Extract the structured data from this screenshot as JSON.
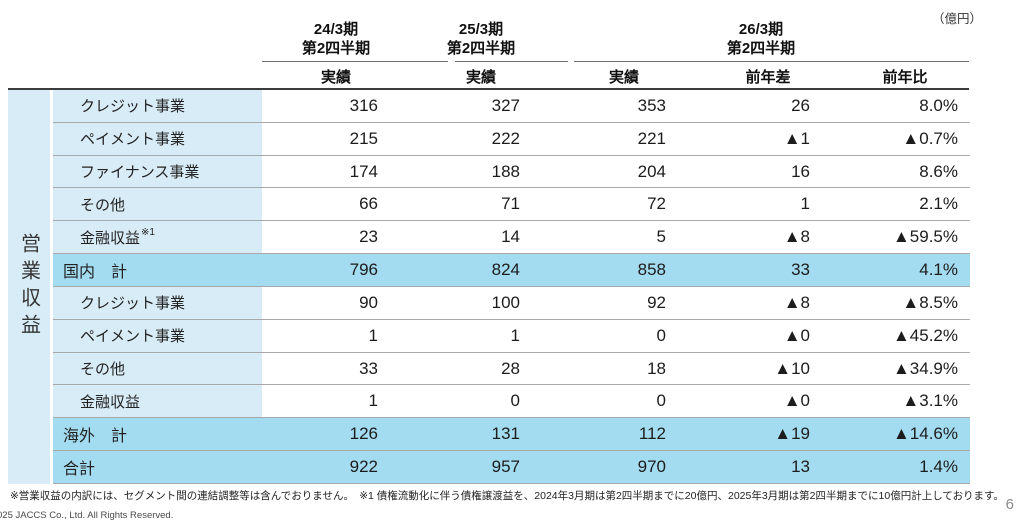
{
  "unit_label": "（億円）",
  "table": {
    "row_axis_label": "営業収益",
    "period_headers": [
      {
        "line1": "24/3期",
        "line2": "第2四半期"
      },
      {
        "line1": "25/3期",
        "line2": "第2四半期"
      },
      {
        "line1": "26/3期",
        "line2": "第2四半期"
      }
    ],
    "sub_headers": [
      "実績",
      "実績",
      "実績",
      "前年差",
      "前年比"
    ],
    "rows": [
      {
        "label": "クレジット事業",
        "sup": "",
        "type": "item",
        "values": [
          "316",
          "327",
          "353",
          "26",
          "8.0%"
        ]
      },
      {
        "label": "ペイメント事業",
        "sup": "",
        "type": "item",
        "values": [
          "215",
          "222",
          "221",
          "▲1",
          "▲0.7%"
        ]
      },
      {
        "label": "ファイナンス事業",
        "sup": "",
        "type": "item",
        "values": [
          "174",
          "188",
          "204",
          "16",
          "8.6%"
        ]
      },
      {
        "label": "その他",
        "sup": "",
        "type": "item",
        "values": [
          "66",
          "71",
          "72",
          "1",
          "2.1%"
        ]
      },
      {
        "label": "金融収益",
        "sup": "※1",
        "type": "item",
        "values": [
          "23",
          "14",
          "5",
          "▲8",
          "▲59.5%"
        ]
      },
      {
        "label": "国内　計",
        "sup": "",
        "type": "total",
        "values": [
          "796",
          "824",
          "858",
          "33",
          "4.1%"
        ]
      },
      {
        "label": "クレジット事業",
        "sup": "",
        "type": "item",
        "values": [
          "90",
          "100",
          "92",
          "▲8",
          "▲8.5%"
        ]
      },
      {
        "label": "ペイメント事業",
        "sup": "",
        "type": "item",
        "values": [
          "1",
          "1",
          "0",
          "▲0",
          "▲45.2%"
        ]
      },
      {
        "label": "その他",
        "sup": "",
        "type": "item",
        "values": [
          "33",
          "28",
          "18",
          "▲10",
          "▲34.9%"
        ]
      },
      {
        "label": "金融収益",
        "sup": "",
        "type": "item",
        "values": [
          "1",
          "0",
          "0",
          "▲0",
          "▲3.1%"
        ]
      },
      {
        "label": "海外　計",
        "sup": "",
        "type": "total",
        "values": [
          "126",
          "131",
          "112",
          "▲19",
          "▲14.6%"
        ]
      },
      {
        "label": "合計",
        "sup": "",
        "type": "total",
        "values": [
          "922",
          "957",
          "970",
          "13",
          "1.4%"
        ]
      }
    ]
  },
  "footnote": "※営業収益の内訳には、セグメント間の連結調整等は含んでおりません。　※1 債権流動化に伴う債権譲渡益を、2024年3月期は第2四半期までに20億円、2025年3月期は第2四半期までに10億円計上しております。",
  "copyright": "025 JACCS Co., Ltd. All Rights Reserved.",
  "page_number": "6",
  "colors": {
    "light_blue": "#d8ecf7",
    "medium_blue": "#a3dbf0"
  }
}
